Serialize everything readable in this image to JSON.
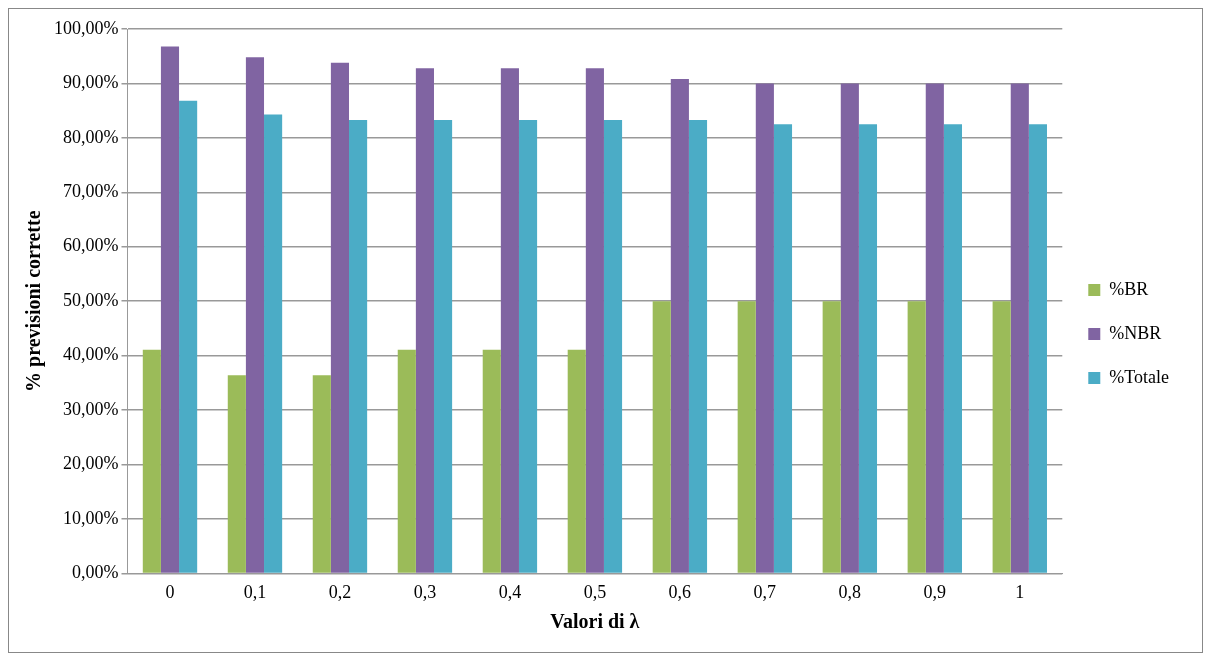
{
  "chart_data": {
    "type": "bar",
    "xlabel": "Valori di λ",
    "ylabel": "% previsioni corrette",
    "categories": [
      "0",
      "0,1",
      "0,2",
      "0,3",
      "0,4",
      "0,5",
      "0,6",
      "0,7",
      "0,8",
      "0,9",
      "1"
    ],
    "series": [
      {
        "name": "%BR",
        "color": "#9bbb59",
        "values": [
          41.1,
          36.4,
          36.4,
          41.1,
          41.1,
          41.1,
          50,
          50,
          50,
          50,
          50
        ]
      },
      {
        "name": "%NBR",
        "color": "#8064a2",
        "values": [
          96.8,
          94.8,
          93.8,
          92.8,
          92.8,
          92.8,
          90.8,
          90,
          90,
          90,
          90
        ]
      },
      {
        "name": "%Totale",
        "color": "#4bacc6",
        "values": [
          86.8,
          84.3,
          83.3,
          83.3,
          83.3,
          83.3,
          83.3,
          82.5,
          82.5,
          82.5,
          82.5
        ]
      }
    ],
    "ylim": [
      0,
      100
    ],
    "yticks": [
      {
        "value": 0,
        "label": "0,00%"
      },
      {
        "value": 10,
        "label": "10,00%"
      },
      {
        "value": 20,
        "label": "20,00%"
      },
      {
        "value": 30,
        "label": "30,00%"
      },
      {
        "value": 40,
        "label": "40,00%"
      },
      {
        "value": 50,
        "label": "50,00%"
      },
      {
        "value": 60,
        "label": "60,00%"
      },
      {
        "value": 70,
        "label": "70,00%"
      },
      {
        "value": 80,
        "label": "80,00%"
      },
      {
        "value": 90,
        "label": "90,00%"
      },
      {
        "value": 100,
        "label": "100,00%"
      }
    ],
    "grid": "y",
    "legend": "right"
  }
}
